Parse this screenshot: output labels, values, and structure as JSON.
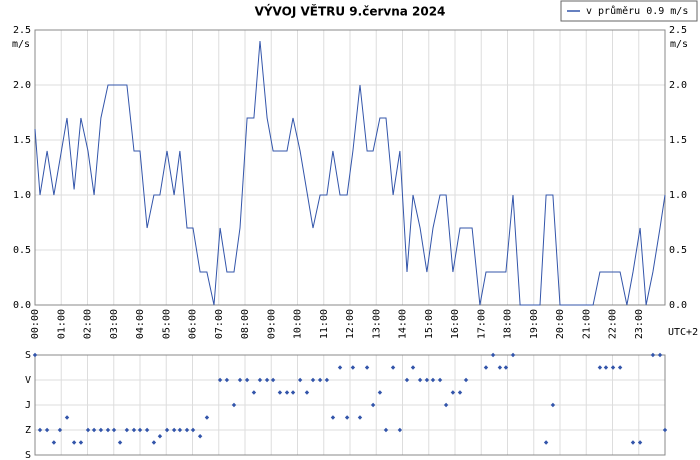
{
  "chart_data": [
    {
      "type": "line",
      "title": "VÝVOJ VĚTRU  9.června 2024",
      "ylabel": "m/s",
      "note": "UTC+2",
      "legend": "top-right",
      "grid": true,
      "xlim": [
        0,
        24
      ],
      "xticks": [
        {
          "value": 0,
          "label": "00:00"
        },
        {
          "value": 1,
          "label": "01:00"
        },
        {
          "value": 2,
          "label": "02:00"
        },
        {
          "value": 3,
          "label": "03:00"
        },
        {
          "value": 4,
          "label": "04:00"
        },
        {
          "value": 5,
          "label": "05:00"
        },
        {
          "value": 6,
          "label": "06:00"
        },
        {
          "value": 7,
          "label": "07:00"
        },
        {
          "value": 8,
          "label": "08:00"
        },
        {
          "value": 9,
          "label": "09:00"
        },
        {
          "value": 10,
          "label": "10:00"
        },
        {
          "value": 11,
          "label": "11:00"
        },
        {
          "value": 12,
          "label": "12:00"
        },
        {
          "value": 13,
          "label": "13:00"
        },
        {
          "value": 14,
          "label": "14:00"
        },
        {
          "value": 15,
          "label": "15:00"
        },
        {
          "value": 16,
          "label": "16:00"
        },
        {
          "value": 17,
          "label": "17:00"
        },
        {
          "value": 18,
          "label": "18:00"
        },
        {
          "value": 19,
          "label": "19:00"
        },
        {
          "value": 20,
          "label": "20:00"
        },
        {
          "value": 21,
          "label": "21:00"
        },
        {
          "value": 22,
          "label": "22:00"
        },
        {
          "value": 23,
          "label": "23:00"
        }
      ],
      "ylim": [
        0,
        2.5
      ],
      "yticks": [
        {
          "value": 0,
          "label": "0.0"
        },
        {
          "value": 0.5,
          "label": "0.5"
        },
        {
          "value": 1,
          "label": "1.0"
        },
        {
          "value": 1.5,
          "label": "1.5"
        },
        {
          "value": 2,
          "label": "2.0"
        },
        {
          "value": 2.5,
          "label": "2.5"
        }
      ],
      "x": [
        0,
        0.19,
        0.46,
        0.72,
        1.22,
        1.49,
        1.75,
        2.02,
        2.25,
        2.51,
        2.78,
        3.5,
        3.77,
        4.0,
        4.27,
        4.53,
        4.76,
        5.03,
        5.3,
        5.52,
        5.79,
        6.02,
        6.29,
        6.55,
        6.82,
        7.05,
        7.31,
        7.58,
        7.81,
        8.08,
        8.34,
        8.57,
        8.84,
        9.07,
        9.6,
        9.83,
        10.1,
        10.59,
        10.86,
        11.12,
        11.35,
        11.62,
        11.89,
        12.11,
        12.38,
        12.65,
        12.88,
        13.14,
        13.37,
        13.64,
        13.9,
        14.17,
        14.4,
        14.67,
        14.93,
        15.16,
        15.43,
        15.66,
        15.92,
        16.19,
        16.65,
        16.95,
        17.18,
        17.94,
        18.21,
        18.48,
        19.24,
        19.47,
        19.73,
        20.0,
        21.26,
        21.52,
        22.29,
        22.55,
        22.78,
        23.05,
        23.28,
        23.54,
        23.81,
        24.0
      ],
      "series": [
        {
          "name": "v průměru 0.9 m/s",
          "color": "#3355aa",
          "values": [
            1.6,
            1.0,
            1.4,
            1.0,
            1.7,
            1.05,
            1.7,
            1.4,
            1.0,
            1.7,
            2.0,
            2.0,
            1.4,
            1.4,
            0.7,
            1.0,
            1.0,
            1.4,
            1.0,
            1.4,
            0.7,
            0.7,
            0.3,
            0.3,
            0.0,
            0.7,
            0.3,
            0.3,
            0.7,
            1.7,
            1.7,
            2.4,
            1.7,
            1.4,
            1.4,
            1.7,
            1.4,
            0.7,
            1.0,
            1.0,
            1.4,
            1.0,
            1.0,
            1.4,
            2.0,
            1.4,
            1.4,
            1.7,
            1.7,
            1.0,
            1.4,
            0.3,
            1.0,
            0.7,
            0.3,
            0.7,
            1.0,
            1.0,
            0.3,
            0.7,
            0.7,
            0.0,
            0.3,
            0.3,
            1.0,
            0.0,
            0.0,
            1.0,
            1.0,
            0.0,
            0.0,
            0.3,
            0.3,
            0.0,
            0.3,
            0.7,
            0.0,
            0.3,
            0.7,
            1.0
          ]
        }
      ]
    },
    {
      "type": "scatter",
      "grid": true,
      "color": "#3355aa",
      "xlim": [
        0,
        24
      ],
      "ylim": [
        360,
        0
      ],
      "yticks": [
        {
          "value": 0,
          "label": "S"
        },
        {
          "value": 90,
          "label": "V"
        },
        {
          "value": 180,
          "label": "J"
        },
        {
          "value": 270,
          "label": "Z"
        },
        {
          "value": 360,
          "label": "S"
        }
      ],
      "x": [
        0,
        0.19,
        0.46,
        0.72,
        0.95,
        1.22,
        1.49,
        1.75,
        2.02,
        2.25,
        2.51,
        2.78,
        3.01,
        3.24,
        3.5,
        3.77,
        4.0,
        4.27,
        4.53,
        4.76,
        5.03,
        5.3,
        5.52,
        5.79,
        6.02,
        6.29,
        6.55,
        7.05,
        7.31,
        7.58,
        7.81,
        8.08,
        8.34,
        8.57,
        8.84,
        9.07,
        9.33,
        9.6,
        9.83,
        10.1,
        10.36,
        10.59,
        10.86,
        11.12,
        11.35,
        11.62,
        11.89,
        12.11,
        12.38,
        12.65,
        12.88,
        13.14,
        13.37,
        13.64,
        13.9,
        14.17,
        14.4,
        14.67,
        14.93,
        15.16,
        15.43,
        15.66,
        15.92,
        16.19,
        16.42,
        17.18,
        17.45,
        17.71,
        17.94,
        18.21,
        19.47,
        19.73,
        21.52,
        21.75,
        22.02,
        22.29,
        22.78,
        23.05,
        23.54,
        23.81,
        24.0
      ],
      "values": [
        0,
        270,
        270,
        315,
        270,
        225,
        315,
        315,
        270,
        270,
        270,
        270,
        270,
        315,
        270,
        270,
        270,
        270,
        315,
        292.5,
        270,
        270,
        270,
        270,
        270,
        292.5,
        225,
        90,
        90,
        180,
        90,
        90,
        135,
        90,
        90,
        90,
        135,
        135,
        135,
        90,
        135,
        90,
        90,
        90,
        225,
        45,
        225,
        45,
        225,
        45,
        180,
        135,
        270,
        45,
        270,
        90,
        45,
        90,
        90,
        90,
        90,
        180,
        135,
        135,
        90,
        45,
        0,
        45,
        45,
        0,
        315,
        180,
        45,
        45,
        45,
        45,
        315,
        315,
        0,
        0,
        270
      ]
    }
  ]
}
